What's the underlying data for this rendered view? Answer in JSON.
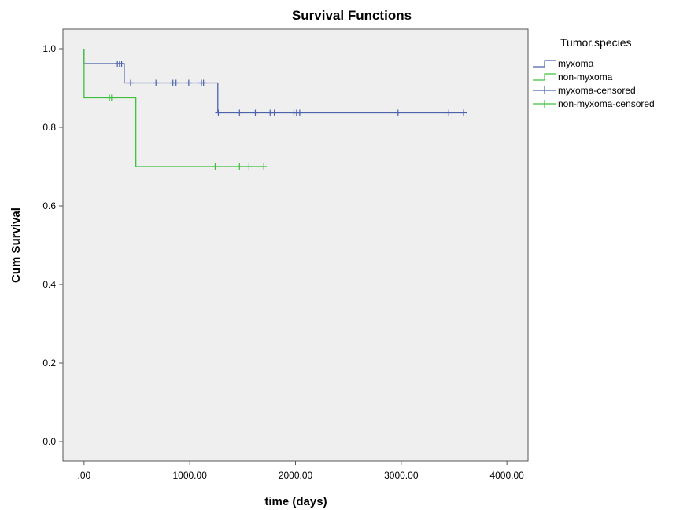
{
  "chart_data": {
    "type": "line",
    "title": "Survival Functions",
    "xlabel": "time (days)",
    "ylabel": "Cum Survival",
    "xlim": [
      -200,
      4200
    ],
    "ylim": [
      -0.05,
      1.05
    ],
    "x_ticks": [
      0,
      1000,
      2000,
      3000,
      4000
    ],
    "x_tick_labels": [
      ".00",
      "1000.00",
      "2000.00",
      "3000.00",
      "4000.00"
    ],
    "y_ticks": [
      0.0,
      0.2,
      0.4,
      0.6,
      0.8,
      1.0
    ],
    "y_tick_labels": [
      "0.0",
      "0.2",
      "0.4",
      "0.6",
      "0.8",
      "1.0"
    ],
    "legend_title": "Tumor.species",
    "legend_position": "right",
    "grid": false,
    "background_color": "#efefef",
    "series": [
      {
        "name": "myxoma",
        "color": "#4b62ad",
        "steps": [
          [
            0,
            1.0
          ],
          [
            0,
            0.962
          ],
          [
            380,
            0.962
          ],
          [
            380,
            0.913
          ],
          [
            1265,
            0.913
          ],
          [
            1265,
            0.837
          ],
          [
            3590,
            0.837
          ]
        ],
        "censored_x": [
          315,
          335,
          355,
          440,
          680,
          840,
          870,
          990,
          1110,
          1130,
          1270,
          1470,
          1620,
          1760,
          1800,
          1985,
          2010,
          2040,
          2970,
          3450,
          3590
        ],
        "censored_y": [
          0.962,
          0.962,
          0.962,
          0.913,
          0.913,
          0.913,
          0.913,
          0.913,
          0.913,
          0.913,
          0.837,
          0.837,
          0.837,
          0.837,
          0.837,
          0.837,
          0.837,
          0.837,
          0.837,
          0.837,
          0.837
        ]
      },
      {
        "name": "non-myxoma",
        "color": "#3dbf3d",
        "steps": [
          [
            0,
            1.0
          ],
          [
            0,
            0.875
          ],
          [
            490,
            0.875
          ],
          [
            490,
            0.7
          ],
          [
            1700,
            0.7
          ]
        ],
        "censored_x": [
          240,
          260,
          1240,
          1470,
          1560,
          1700
        ],
        "censored_y": [
          0.875,
          0.875,
          0.7,
          0.7,
          0.7,
          0.7
        ]
      }
    ],
    "legend_entries": [
      "myxoma",
      "non-myxoma",
      "myxoma-censored",
      "non-myxoma-censored"
    ]
  }
}
